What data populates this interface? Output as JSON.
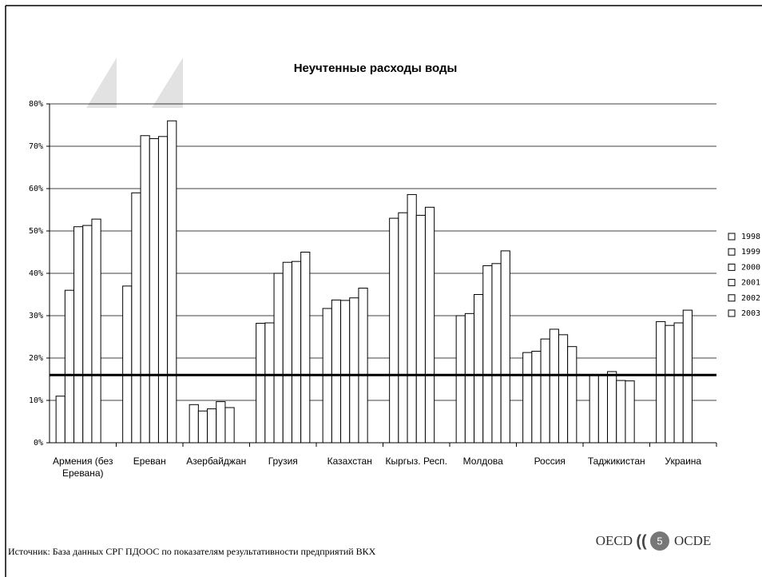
{
  "chart_data": {
    "type": "bar",
    "title": "Неучтенные расходы воды",
    "categories": [
      "Армения (без Еревана)",
      "Ереван",
      "Азербайджан",
      "Грузия",
      "Казахстан",
      "Кыргыз. Респ.",
      "Молдова",
      "Россия",
      "Таджикистан",
      "Украина"
    ],
    "series": [
      {
        "name": "1998",
        "color": "#ffffff",
        "values": [
          11,
          37,
          9,
          28.2,
          31.7,
          53,
          30,
          21.3,
          16,
          28.6
        ]
      },
      {
        "name": "1999",
        "color": "#ffffff",
        "values": [
          36,
          59,
          7.5,
          28.3,
          33.7,
          54.3,
          30.5,
          21.6,
          16,
          27.7
        ]
      },
      {
        "name": "2000",
        "color": "#ffffff",
        "values": [
          51,
          72.5,
          8,
          40,
          33.6,
          58.6,
          35,
          24.5,
          16.8,
          28.3
        ]
      },
      {
        "name": "2001",
        "color": "#ffffff",
        "values": [
          51.3,
          71.8,
          9.7,
          42.6,
          34.2,
          53.7,
          41.8,
          26.8,
          14.7,
          31.3
        ]
      },
      {
        "name": "2002",
        "color": "#ffffff",
        "values": [
          52.8,
          72.3,
          8.3,
          42.8,
          36.5,
          55.6,
          42.3,
          25.5,
          14.6,
          null
        ]
      },
      {
        "name": "2003",
        "color": "#ffffff",
        "values": [
          null,
          76,
          null,
          45,
          null,
          null,
          45.3,
          22.7,
          null,
          null
        ]
      }
    ],
    "reference_value": 16,
    "ylim": [
      0,
      80
    ],
    "yticks": [
      {
        "value": 0,
        "label": "0%"
      },
      {
        "value": 10,
        "label": "10%"
      },
      {
        "value": 20,
        "label": "20%"
      },
      {
        "value": 30,
        "label": "30%"
      },
      {
        "value": 40,
        "label": "40%"
      },
      {
        "value": 50,
        "label": "50%"
      },
      {
        "value": 60,
        "label": "60%"
      },
      {
        "value": 70,
        "label": "70%"
      },
      {
        "value": 80,
        "label": "80%"
      }
    ],
    "grid": true
  },
  "footer": {
    "source": "Источник: База данных СРГ ПДООС по показателям результативности предприятий ВКХ",
    "logo_left": "OECD",
    "page_number": "5",
    "logo_right": "OCDE"
  }
}
